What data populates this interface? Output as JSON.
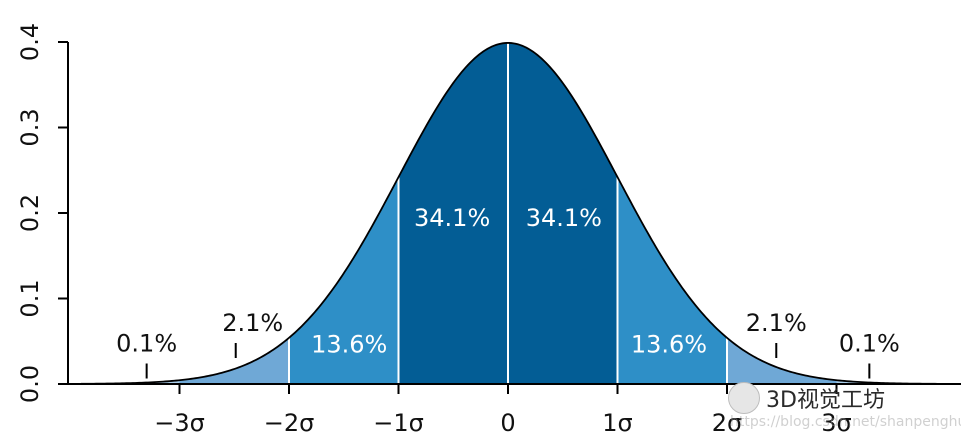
{
  "chart_data": {
    "type": "area",
    "title": "",
    "xlabel": "",
    "ylabel": "",
    "xlim": [
      -3.9,
      4.0
    ],
    "ylim": [
      0,
      0.4
    ],
    "x_ticks": [
      -3,
      -2,
      -1,
      0,
      1,
      2,
      3
    ],
    "x_tick_labels": [
      "−3σ",
      "−2σ",
      "−1σ",
      "0",
      "1σ",
      "2σ",
      "3σ"
    ],
    "y_ticks": [
      0.0,
      0.1,
      0.2,
      0.3,
      0.4
    ],
    "y_tick_labels": [
      "0.0",
      "0.1",
      "0.2",
      "0.3",
      "0.4"
    ],
    "curve": "standard normal density",
    "regions": [
      {
        "from": -2,
        "to": -1,
        "value": 13.6,
        "label": "13.6%",
        "color": "#2e8fc7"
      },
      {
        "from": -1,
        "to": 0,
        "value": 34.1,
        "label": "34.1%",
        "color": "#035d95"
      },
      {
        "from": 0,
        "to": 1,
        "value": 34.1,
        "label": "34.1%",
        "color": "#035d95"
      },
      {
        "from": 1,
        "to": 2,
        "value": 13.6,
        "label": "13.6%",
        "color": "#2e8fc7"
      },
      {
        "from": -3,
        "to": -2,
        "value": 2.1,
        "label": "2.1%",
        "color": "#6fa8d6"
      },
      {
        "from": 2,
        "to": 3,
        "value": 2.1,
        "label": "2.1%",
        "color": "#6fa8d6"
      },
      {
        "from": -4,
        "to": -3,
        "value": 0.1,
        "label": "0.1%",
        "color": "#a9cce8"
      },
      {
        "from": 3,
        "to": 4,
        "value": 0.1,
        "label": "0.1%",
        "color": "#a9cce8"
      }
    ],
    "grid": false,
    "legend": "none"
  },
  "watermark": {
    "brand": "3D视觉工坊",
    "url": "https://blog.csdn.net/shanpenghui"
  }
}
